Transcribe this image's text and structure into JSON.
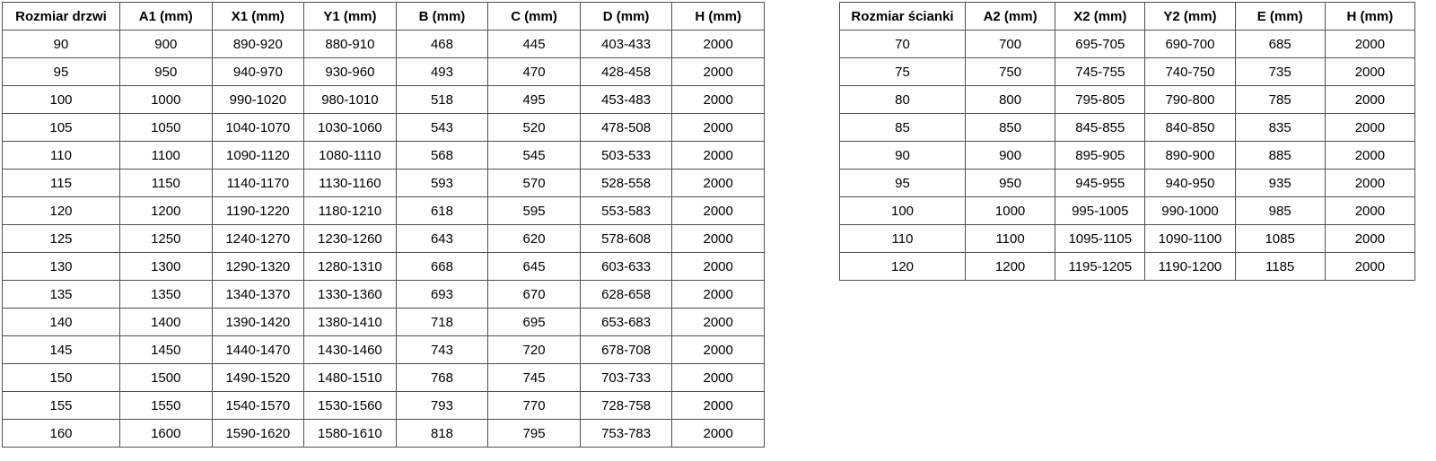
{
  "colors": {
    "background": "#ffffff",
    "border": "#4f4f4f",
    "text": "#000000"
  },
  "tables": [
    {
      "name": "door-sizes-table",
      "headers": [
        "Rozmiar drzwi",
        "A1 (mm)",
        "X1 (mm)",
        "Y1 (mm)",
        "B (mm)",
        "C (mm)",
        "D (mm)",
        "H (mm)"
      ],
      "rows": [
        [
          "90",
          "900",
          "890-920",
          "880-910",
          "468",
          "445",
          "403-433",
          "2000"
        ],
        [
          "95",
          "950",
          "940-970",
          "930-960",
          "493",
          "470",
          "428-458",
          "2000"
        ],
        [
          "100",
          "1000",
          "990-1020",
          "980-1010",
          "518",
          "495",
          "453-483",
          "2000"
        ],
        [
          "105",
          "1050",
          "1040-1070",
          "1030-1060",
          "543",
          "520",
          "478-508",
          "2000"
        ],
        [
          "110",
          "1100",
          "1090-1120",
          "1080-1110",
          "568",
          "545",
          "503-533",
          "2000"
        ],
        [
          "115",
          "1150",
          "1140-1170",
          "1130-1160",
          "593",
          "570",
          "528-558",
          "2000"
        ],
        [
          "120",
          "1200",
          "1190-1220",
          "1180-1210",
          "618",
          "595",
          "553-583",
          "2000"
        ],
        [
          "125",
          "1250",
          "1240-1270",
          "1230-1260",
          "643",
          "620",
          "578-608",
          "2000"
        ],
        [
          "130",
          "1300",
          "1290-1320",
          "1280-1310",
          "668",
          "645",
          "603-633",
          "2000"
        ],
        [
          "135",
          "1350",
          "1340-1370",
          "1330-1360",
          "693",
          "670",
          "628-658",
          "2000"
        ],
        [
          "140",
          "1400",
          "1390-1420",
          "1380-1410",
          "718",
          "695",
          "653-683",
          "2000"
        ],
        [
          "145",
          "1450",
          "1440-1470",
          "1430-1460",
          "743",
          "720",
          "678-708",
          "2000"
        ],
        [
          "150",
          "1500",
          "1490-1520",
          "1480-1510",
          "768",
          "745",
          "703-733",
          "2000"
        ],
        [
          "155",
          "1550",
          "1540-1570",
          "1530-1560",
          "793",
          "770",
          "728-758",
          "2000"
        ],
        [
          "160",
          "1600",
          "1590-1620",
          "1580-1610",
          "818",
          "795",
          "753-783",
          "2000"
        ]
      ]
    },
    {
      "name": "wall-panel-sizes-table",
      "headers": [
        "Rozmiar ścianki",
        "A2 (mm)",
        "X2 (mm)",
        "Y2 (mm)",
        "E (mm)",
        "H (mm)"
      ],
      "rows": [
        [
          "70",
          "700",
          "695-705",
          "690-700",
          "685",
          "2000"
        ],
        [
          "75",
          "750",
          "745-755",
          "740-750",
          "735",
          "2000"
        ],
        [
          "80",
          "800",
          "795-805",
          "790-800",
          "785",
          "2000"
        ],
        [
          "85",
          "850",
          "845-855",
          "840-850",
          "835",
          "2000"
        ],
        [
          "90",
          "900",
          "895-905",
          "890-900",
          "885",
          "2000"
        ],
        [
          "95",
          "950",
          "945-955",
          "940-950",
          "935",
          "2000"
        ],
        [
          "100",
          "1000",
          "995-1005",
          "990-1000",
          "985",
          "2000"
        ],
        [
          "110",
          "1100",
          "1095-1105",
          "1090-1100",
          "1085",
          "2000"
        ],
        [
          "120",
          "1200",
          "1195-1205",
          "1190-1200",
          "1185",
          "2000"
        ]
      ]
    }
  ]
}
